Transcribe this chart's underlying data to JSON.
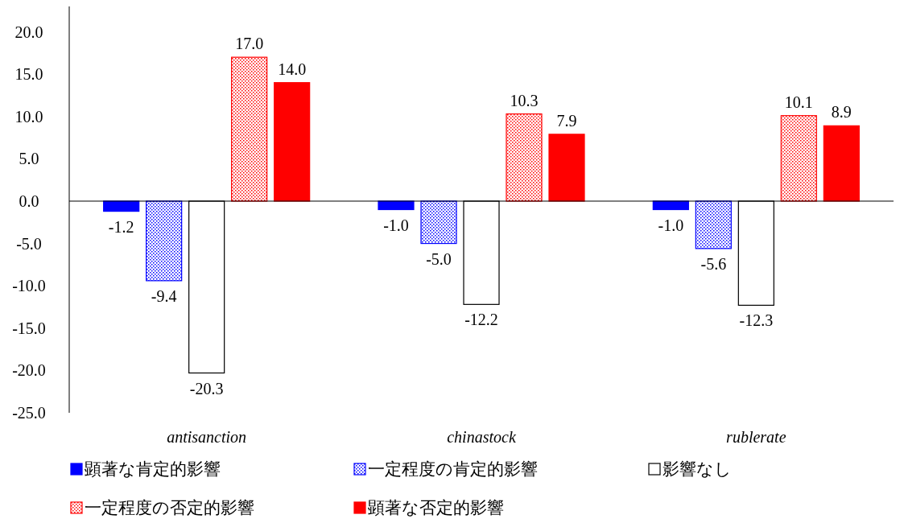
{
  "chart_data": {
    "type": "bar",
    "categories": [
      "antisanction",
      "chinastock",
      "rublerate"
    ],
    "series": [
      {
        "name": "顕著な肯定的影響",
        "color": "#0000ff",
        "values": [
          -1.2,
          -1.0,
          -1.0
        ],
        "value_labels": [
          "-1.2",
          "-1.0",
          "-1.0"
        ]
      },
      {
        "name": "一定程度の肯定的影響",
        "color": "#0000ff",
        "values": [
          -9.4,
          -5.0,
          -5.6
        ],
        "value_labels": [
          "-9.4",
          "-5.0",
          "-5.6"
        ]
      },
      {
        "name": "影響なし",
        "color": "#ffffff",
        "values": [
          -20.3,
          -12.2,
          -12.3
        ],
        "value_labels": [
          "-20.3",
          "-12.2",
          "-12.3"
        ]
      },
      {
        "name": "一定程度の否定的影響",
        "color": "#ff0000",
        "values": [
          17.0,
          10.3,
          10.1
        ],
        "value_labels": [
          "17.0",
          "10.3",
          "10.1"
        ]
      },
      {
        "name": "顕著な否定的影響",
        "color": "#ff0000",
        "values": [
          14.0,
          7.9,
          8.9
        ],
        "value_labels": [
          "14.0",
          "7.9",
          "8.9"
        ]
      }
    ],
    "ylim": [
      -25,
      23
    ],
    "yticks": [
      {
        "value": -25,
        "label": "-25.0"
      },
      {
        "value": -20,
        "label": "-20.0"
      },
      {
        "value": -15,
        "label": "-15.0"
      },
      {
        "value": -10,
        "label": "-10.0"
      },
      {
        "value": -5,
        "label": "-5.0"
      },
      {
        "value": 0,
        "label": "0.0"
      },
      {
        "value": 5,
        "label": "5.0"
      },
      {
        "value": 10,
        "label": "10.0"
      },
      {
        "value": 15,
        "label": "15.0"
      },
      {
        "value": 20,
        "label": "20.0"
      }
    ],
    "legend": "bottom"
  }
}
